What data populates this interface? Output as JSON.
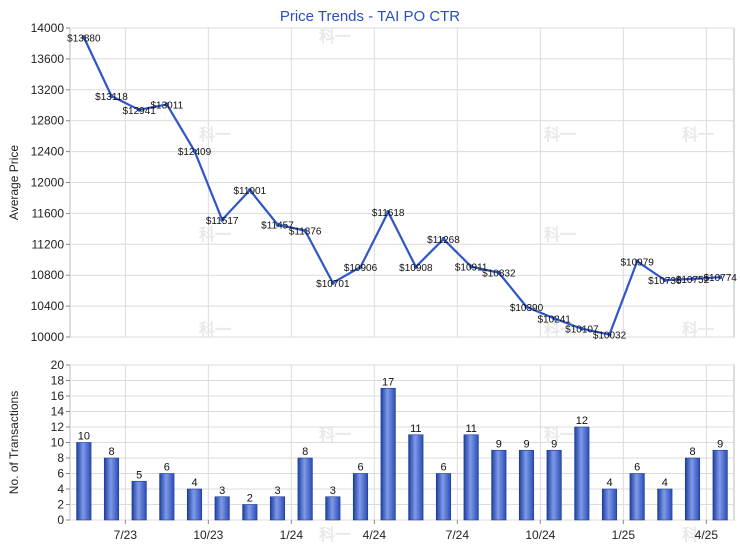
{
  "watermark": "科一",
  "chart_data": [
    {
      "type": "line",
      "title": "Price Trends - TAI PO CTR",
      "ylabel": "Average Price",
      "ylim": [
        10000,
        14000
      ],
      "yticks": [
        10000,
        10400,
        10800,
        11200,
        11600,
        12000,
        12400,
        12800,
        13200,
        13600,
        14000
      ],
      "label_prefix": "$",
      "series_color": "#2d56c8",
      "series": [
        {
          "values": [
            13880,
            13118,
            12941,
            13011,
            12409,
            11517,
            11901,
            11457,
            11376,
            10701,
            10906,
            11618,
            10908,
            11268,
            10911,
            10832,
            10390,
            10241,
            10107,
            10032,
            10979,
            10736,
            10752,
            10774
          ]
        }
      ]
    },
    {
      "type": "bar",
      "ylabel": "No. of Transactions",
      "ylim": [
        0,
        20
      ],
      "yticks": [
        0,
        2,
        4,
        6,
        8,
        10,
        12,
        14,
        16,
        18,
        20
      ],
      "xtick_labels": [
        {
          "index": 2,
          "label": "7/23"
        },
        {
          "index": 5,
          "label": "10/23"
        },
        {
          "index": 8,
          "label": "1/24"
        },
        {
          "index": 11,
          "label": "4/24"
        },
        {
          "index": 14,
          "label": "7/24"
        },
        {
          "index": 17,
          "label": "10/24"
        },
        {
          "index": 20,
          "label": "1/25"
        },
        {
          "index": 23,
          "label": "4/25"
        }
      ],
      "bar_color": "#3a5fc4",
      "values": [
        10,
        8,
        5,
        6,
        4,
        3,
        2,
        3,
        8,
        3,
        6,
        17,
        11,
        6,
        11,
        9,
        9,
        9,
        12,
        4,
        6,
        4,
        8,
        9
      ]
    }
  ]
}
